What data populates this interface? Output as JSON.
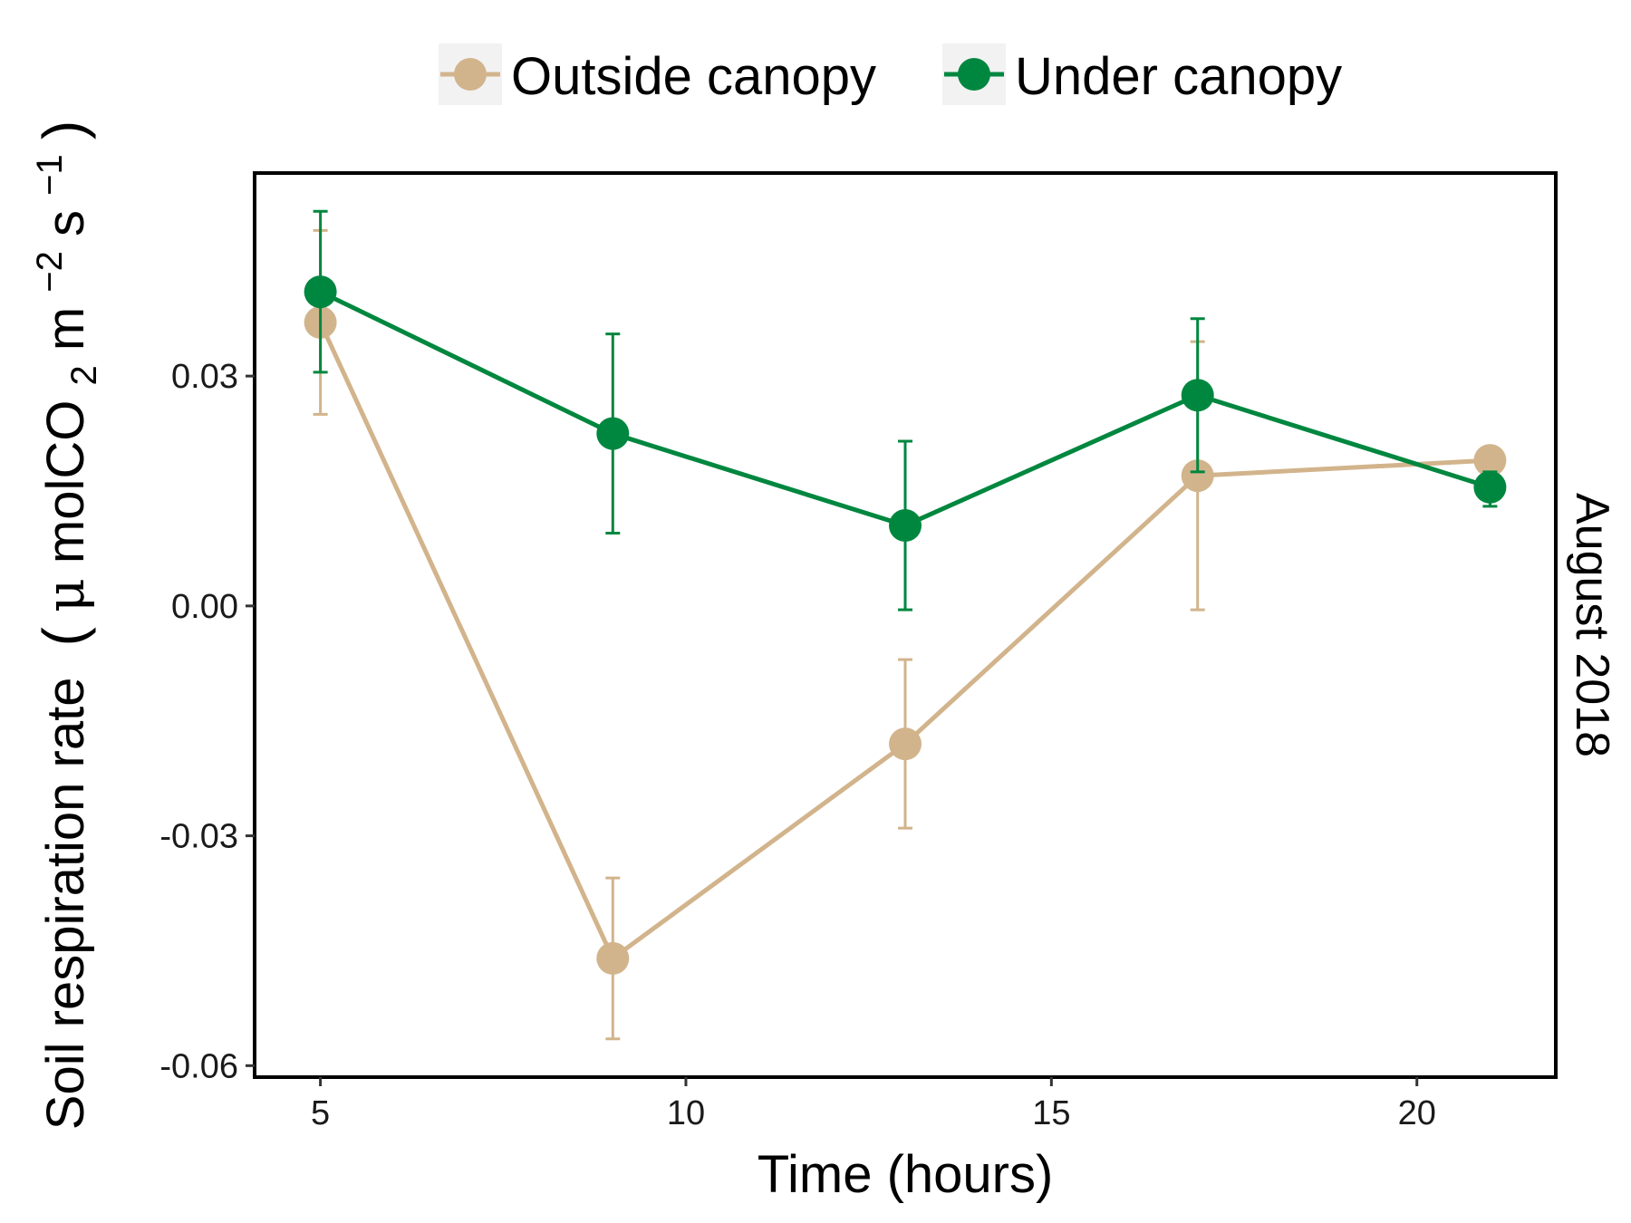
{
  "chart_data": {
    "type": "line",
    "xlabel": "Time (hours)",
    "ylabel": {
      "main": "Soil respiration rate",
      "unit_prefix": "(",
      "mu": "μ",
      "mol": " molCO",
      "sub2": "2",
      "m": " m",
      "sup_m": "−2",
      "s": " s",
      "sup_s": "−1",
      "unit_suffix": ")"
    },
    "facet_label": "August 2018",
    "x_ticks": [
      5,
      10,
      15,
      20
    ],
    "y_ticks": [
      -0.06,
      -0.03,
      0.0,
      0.03
    ],
    "y_tick_labels": [
      "-0.06",
      "-0.03",
      "0.00",
      "0.03"
    ],
    "x_tick_labels": [
      "5",
      "10",
      "15",
      "20"
    ],
    "xlim": [
      4.1,
      21.9
    ],
    "ylim": [
      -0.0615,
      0.0565
    ],
    "grid": false,
    "legend_position": "top",
    "series": [
      {
        "name": "Outside canopy",
        "color": "#d2b48c",
        "x": [
          5,
          9,
          13,
          17,
          21
        ],
        "y": [
          0.037,
          -0.046,
          -0.018,
          0.017,
          0.019
        ],
        "err_low": [
          0.025,
          -0.0565,
          -0.029,
          -0.0005,
          0.019
        ],
        "err_high": [
          0.049,
          -0.0355,
          -0.007,
          0.0345,
          0.019
        ]
      },
      {
        "name": "Under canopy",
        "color": "#00873f",
        "x": [
          5,
          9,
          13,
          17,
          21
        ],
        "y": [
          0.041,
          0.0225,
          0.0105,
          0.0275,
          0.0155
        ],
        "err_low": [
          0.0305,
          0.0095,
          -0.0005,
          0.0175,
          0.013
        ],
        "err_high": [
          0.0515,
          0.0355,
          0.0215,
          0.0375,
          0.0175
        ]
      }
    ]
  }
}
